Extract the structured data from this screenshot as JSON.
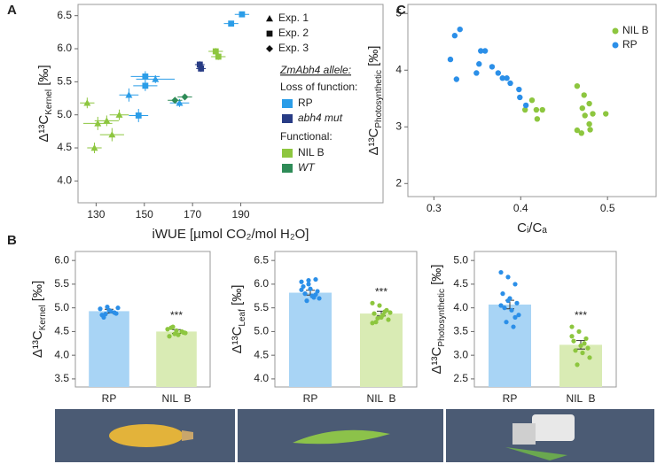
{
  "chart_data": [
    {
      "type": "scatter",
      "panel": "A",
      "xlabel": "iWUE [µmol CO₂/mol H₂O]",
      "ylabel": {
        "text": "Δ¹³C",
        "sub": "Kernel",
        "unit": " [‰]"
      },
      "xlim": [
        122.5,
        249
      ],
      "ylim": [
        3.67,
        6.67
      ],
      "xticks": [
        130,
        150,
        170,
        190
      ],
      "yticks": [
        {
          "value": 4,
          "label": "4.0"
        },
        4.5,
        {
          "value": 5,
          "label": "5.0"
        },
        5.5,
        {
          "value": 6,
          "label": "6.0"
        },
        6.5
      ],
      "shape_legend": [
        {
          "label": "Exp. 1",
          "marker": "triangle"
        },
        {
          "label": "Exp. 2",
          "marker": "square"
        },
        {
          "label": "Exp. 3",
          "marker": "diamond"
        }
      ],
      "legend_title": "ZmAbh4 allele:",
      "groups": [
        {
          "label": "Loss of function:",
          "series": [
            {
              "name": "RP",
              "color": "#2b9de8",
              "x": [
                190.5,
                186,
                150.4,
                150.4,
                154.6,
                143.6,
                164.6,
                147.6
              ],
              "values": [
                6.52,
                6.38,
                5.58,
                5.44,
                5.54,
                5.3,
                5.18,
                4.99
              ],
              "xerr": [
                3,
                3,
                6,
                5,
                8,
                4,
                4,
                4
              ],
              "yerr": [
                0.04,
                0.04,
                0.08,
                0.08,
                0.06,
                0.1,
                0.06,
                0.1
              ],
              "markers": [
                "square",
                "square",
                "square",
                "square",
                "triangle",
                "triangle",
                "triangle",
                "square"
              ]
            },
            {
              "name": "abh4 mut",
              "italic": true,
              "color": "#283c85",
              "x": [
                173,
                173.5
              ],
              "values": [
                5.76,
                5.7
              ],
              "xerr": [
                2,
                2
              ],
              "yerr": [
                0.05,
                0.05
              ],
              "markers": [
                "square",
                "square"
              ]
            }
          ]
        },
        {
          "label": "Functional:",
          "series": [
            {
              "name": "NIL B",
              "color": "#8dc63f",
              "x": [
                179.6,
                180.7,
                126.3,
                130.7,
                134.4,
                139.6,
                136.6,
                129.3
              ],
              "values": [
                5.96,
                5.88,
                5.18,
                4.87,
                4.91,
                5.0,
                4.7,
                4.5
              ],
              "xerr": [
                3,
                3,
                3,
                6,
                5,
                4,
                5,
                3
              ],
              "yerr": [
                0.05,
                0.05,
                0.08,
                0.1,
                0.08,
                0.08,
                0.1,
                0.08
              ],
              "markers": [
                "square",
                "square",
                "triangle",
                "triangle",
                "triangle",
                "triangle",
                "triangle",
                "triangle"
              ]
            },
            {
              "name": "WT",
              "italic": true,
              "color": "#2e8b57",
              "x": [
                162.7,
                166.8
              ],
              "values": [
                5.22,
                5.27
              ],
              "xerr": [
                3,
                3
              ],
              "yerr": [
                0.04,
                0.04
              ],
              "markers": [
                "diamond",
                "diamond"
              ]
            }
          ]
        }
      ]
    },
    {
      "type": "scatter",
      "panel": "C",
      "xlabel": "Cᵢ/Cₐ",
      "ylabel": {
        "text": "Δ¹³C",
        "sub": "Photosynthetic",
        "unit": " [‰]"
      },
      "xlim": [
        0.27,
        0.556
      ],
      "ylim": [
        1.77,
        5.16
      ],
      "xticks": [
        0.3,
        0.4,
        0.5
      ],
      "yticks": [
        2,
        3,
        4,
        5
      ],
      "groups": [
        {
          "series": [
            {
              "name": "NIL B",
              "color": "#8dc63f",
              "x": [
                0.413,
                0.418,
                0.405,
                0.419,
                0.425,
                0.465,
                0.473,
                0.479,
                0.471,
                0.483,
                0.474,
                0.479,
                0.465,
                0.47,
                0.48,
                0.498
              ],
              "values": [
                3.47,
                3.3,
                3.3,
                3.14,
                3.3,
                3.72,
                3.56,
                3.41,
                3.33,
                3.23,
                3.2,
                3.05,
                2.94,
                2.89,
                2.95,
                3.23
              ]
            },
            {
              "name": "RP",
              "color": "#2b8fe8",
              "x": [
                0.33,
                0.324,
                0.319,
                0.326,
                0.349,
                0.354,
                0.359,
                0.352,
                0.367,
                0.374,
                0.379,
                0.384,
                0.388,
                0.398,
                0.399,
                0.406
              ],
              "values": [
                4.72,
                4.61,
                4.19,
                3.84,
                3.95,
                4.34,
                4.34,
                4.11,
                4.06,
                3.95,
                3.86,
                3.86,
                3.77,
                3.66,
                3.52,
                3.38
              ]
            }
          ]
        }
      ]
    },
    {
      "type": "bar",
      "panel": "B",
      "ylabel": {
        "text": "Δ¹³C",
        "sub": "Kernel",
        "unit": " [‰]"
      },
      "categories": [
        "RP",
        "NIL  B"
      ],
      "values": [
        4.93,
        4.5
      ],
      "errors": [
        0.04,
        0.04
      ],
      "colors": [
        "#a8d4f5",
        "#d9ebb4"
      ],
      "point_colors": [
        "#2b8fe8",
        "#8dc63f"
      ],
      "points": [
        [
          4.98,
          5.02,
          4.9,
          4.85,
          4.95,
          4.88,
          4.8,
          4.93,
          5.0,
          4.87
        ],
        [
          4.55,
          4.45,
          4.5,
          4.4,
          4.52,
          4.48,
          4.58,
          4.43,
          4.47,
          4.6
        ]
      ],
      "annotation": "***",
      "ylim": [
        3.33,
        6.19
      ],
      "yticks": [
        3.5,
        {
          "value": 4,
          "label": "4.0"
        },
        4.5,
        {
          "value": 5,
          "label": "5.0"
        },
        5.5,
        {
          "value": 6,
          "label": "6.0"
        }
      ]
    },
    {
      "type": "bar",
      "ylabel": {
        "text": "Δ¹³C",
        "sub": "Leaf",
        "unit": " [‰]"
      },
      "categories": [
        "RP",
        "NIL  B"
      ],
      "values": [
        5.82,
        5.38
      ],
      "errors": [
        0.05,
        0.05
      ],
      "colors": [
        "#a8d4f5",
        "#d9ebb4"
      ],
      "point_colors": [
        "#2b8fe8",
        "#8dc63f"
      ],
      "points": [
        [
          6.05,
          6.08,
          6.1,
          5.95,
          5.9,
          5.85,
          5.8,
          5.75,
          5.7,
          5.65,
          5.72,
          5.88,
          6.0,
          5.78
        ],
        [
          5.6,
          5.55,
          5.45,
          5.38,
          5.3,
          5.25,
          5.2,
          5.35,
          5.4,
          5.28,
          5.42,
          5.18
        ]
      ],
      "annotation": "***",
      "ylim": [
        3.83,
        6.69
      ],
      "yticks": [
        {
          "value": 4,
          "label": "4.0"
        },
        4.5,
        {
          "value": 5,
          "label": "5.0"
        },
        5.5,
        {
          "value": 6,
          "label": "6.0"
        },
        6.5
      ]
    },
    {
      "type": "bar",
      "ylabel": {
        "text": "Δ¹³C",
        "sub": "Photosynthetic",
        "unit": " [‰]"
      },
      "categories": [
        "RP",
        "NIL  B"
      ],
      "values": [
        4.07,
        3.22
      ],
      "errors": [
        0.09,
        0.09
      ],
      "colors": [
        "#a8d4f5",
        "#d9ebb4"
      ],
      "point_colors": [
        "#2b8fe8",
        "#8dc63f"
      ],
      "points": [
        [
          4.75,
          4.65,
          4.5,
          4.3,
          4.2,
          4.1,
          4.0,
          3.95,
          3.85,
          3.7,
          3.6,
          4.05,
          4.15,
          3.8
        ],
        [
          3.6,
          3.5,
          3.35,
          3.3,
          3.2,
          3.15,
          3.1,
          3.05,
          2.95,
          2.8,
          3.25,
          3.4
        ]
      ],
      "annotation": "***",
      "ylim": [
        2.33,
        5.19
      ],
      "yticks": [
        2.5,
        {
          "value": 3,
          "label": "3.0"
        },
        3.5,
        {
          "value": 4,
          "label": "4.0"
        },
        4.5,
        {
          "value": 5,
          "label": "5.0"
        }
      ]
    }
  ]
}
